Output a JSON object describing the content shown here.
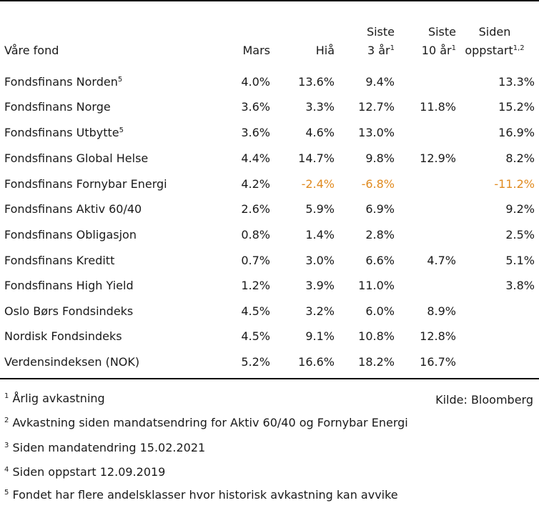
{
  "header": {
    "name_col": "Våre fond",
    "mars": "Mars",
    "hia": "Hiå",
    "siste3_line1": "Siste",
    "siste3_line2": "3 år",
    "siste3_sup": "1",
    "siste10_line1": "Siste",
    "siste10_line2": "10 år",
    "siste10_sup": "1",
    "siden_line1": "Siden",
    "siden_line2": "oppstart",
    "siden_sup": "1,2"
  },
  "rows": [
    {
      "name": "Fondsfinans Norden",
      "sup": "5",
      "mars": "4.0%",
      "hia": "13.6%",
      "y3": "9.4%",
      "y10": "",
      "since": "13.3%"
    },
    {
      "name": "Fondsfinans Norge",
      "sup": "",
      "mars": "3.6%",
      "hia": "3.3%",
      "y3": "12.7%",
      "y10": "11.8%",
      "since": "15.2%"
    },
    {
      "name": "Fondsfinans Utbytte",
      "sup": "5",
      "mars": "3.6%",
      "hia": "4.6%",
      "y3": "13.0%",
      "y10": "",
      "since": "16.9%"
    },
    {
      "name": "Fondsfinans Global Helse",
      "sup": "",
      "mars": "4.4%",
      "hia": "14.7%",
      "y3": "9.8%",
      "y10": "12.9%",
      "since": "8.2%"
    },
    {
      "name": "Fondsfinans Fornybar Energi",
      "sup": "",
      "mars": "4.2%",
      "hia": "-2.4%",
      "y3": "-6.8%",
      "y10": "",
      "since": "-11.2%"
    },
    {
      "name": "Fondsfinans Aktiv 60/40",
      "sup": "",
      "mars": "2.6%",
      "hia": "5.9%",
      "y3": "6.9%",
      "y10": "",
      "since": "9.2%"
    },
    {
      "name": "Fondsfinans Obligasjon",
      "sup": "",
      "mars": "0.8%",
      "hia": "1.4%",
      "y3": "2.8%",
      "y10": "",
      "since": "2.5%"
    },
    {
      "name": "Fondsfinans Kreditt",
      "sup": "",
      "mars": "0.7%",
      "hia": "3.0%",
      "y3": "6.6%",
      "y10": "4.7%",
      "since": "5.1%"
    },
    {
      "name": "Fondsfinans High Yield",
      "sup": "",
      "mars": "1.2%",
      "hia": "3.9%",
      "y3": "11.0%",
      "y10": "",
      "since": "3.8%"
    },
    {
      "name": "Oslo Børs Fondsindeks",
      "sup": "",
      "mars": "4.5%",
      "hia": "3.2%",
      "y3": "6.0%",
      "y10": "8.9%",
      "since": ""
    },
    {
      "name": "Nordisk Fondsindeks",
      "sup": "",
      "mars": "4.5%",
      "hia": "9.1%",
      "y3": "10.8%",
      "y10": "12.8%",
      "since": ""
    },
    {
      "name": "Verdensindeksen (NOK)",
      "sup": "",
      "mars": "5.2%",
      "hia": "16.6%",
      "y3": "18.2%",
      "y10": "16.7%",
      "since": ""
    }
  ],
  "footnotes": [
    {
      "sup": "1",
      "text": "Årlig avkastning"
    },
    {
      "sup": "2",
      "text": "Avkastning siden mandatsendring for Aktiv 60/40 og Fornybar Energi"
    },
    {
      "sup": "3",
      "text": "Siden mandatendring 15.02.2021"
    },
    {
      "sup": "4",
      "text": "Siden oppstart 12.09.2019"
    },
    {
      "sup": "5",
      "text": "Fondet har flere andelsklasser hvor historisk avkastning kan avvike"
    }
  ],
  "source": "Kilde: Bloomberg",
  "colors": {
    "text": "#1a1a1a",
    "negative": "#e08a1f",
    "rule": "#000000"
  }
}
